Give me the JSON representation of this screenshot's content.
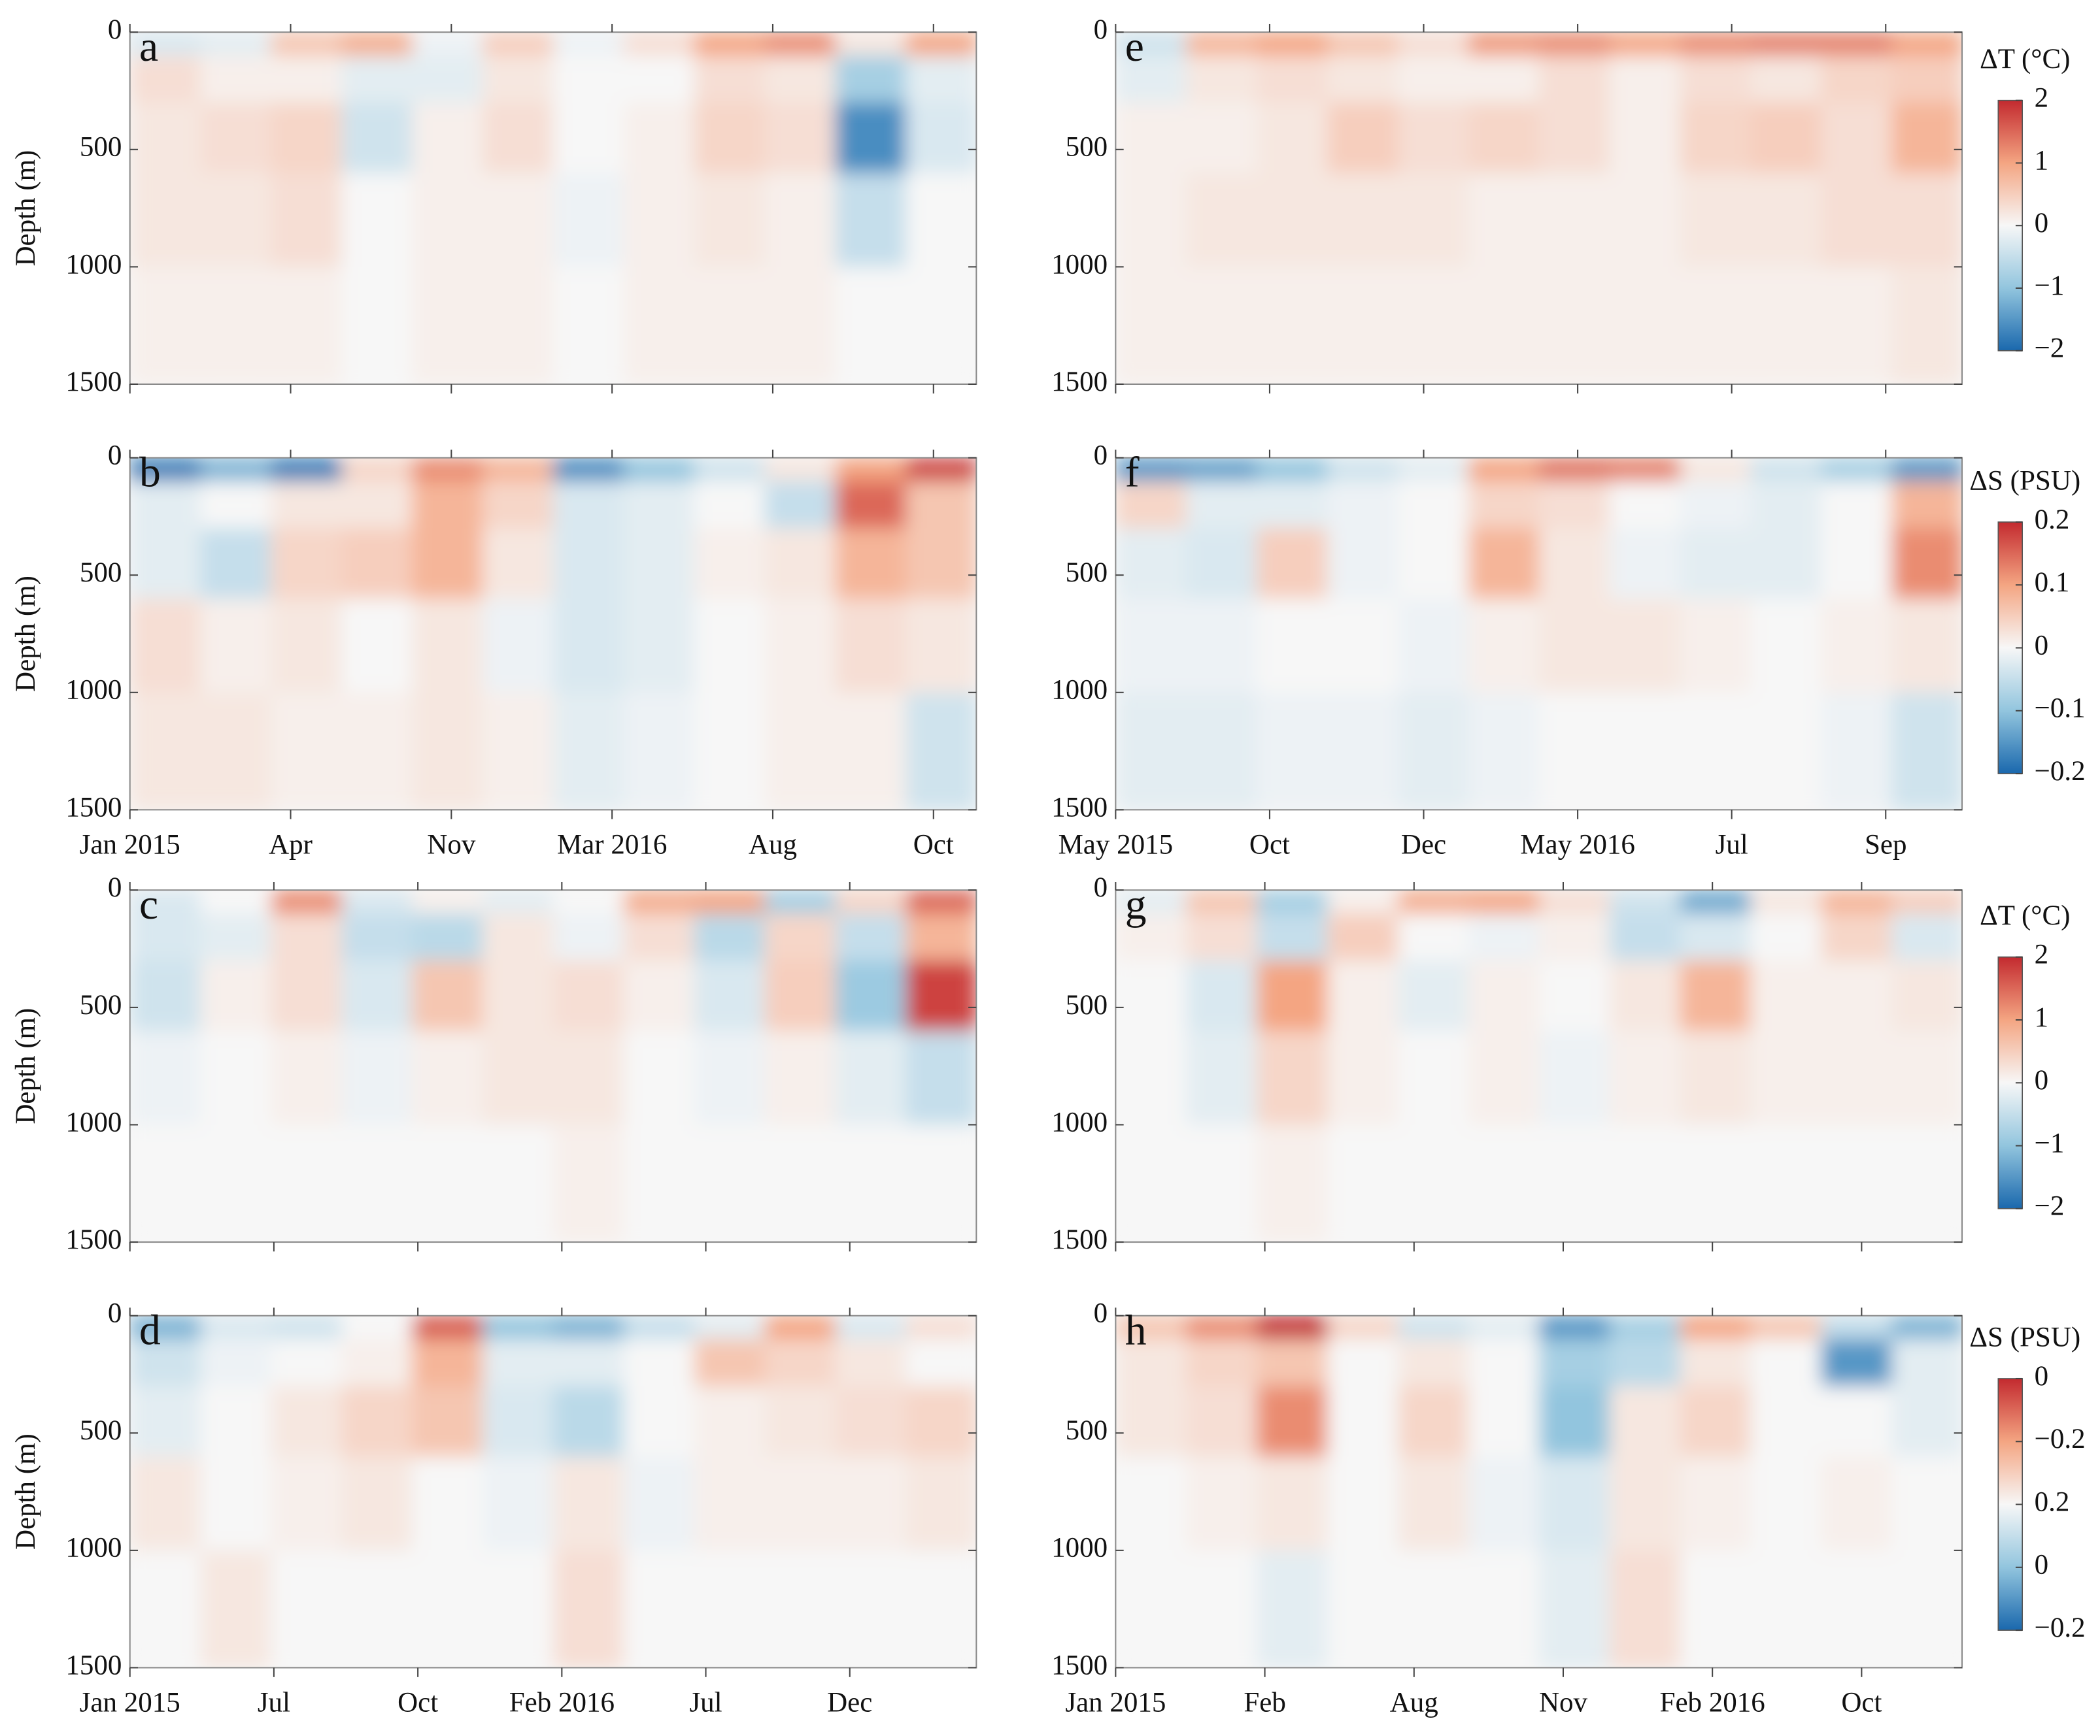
{
  "chart_data": [
    {
      "type": "heatmap",
      "label": "a",
      "ylabel": "Depth (m)",
      "ylim": [
        0,
        1500
      ],
      "yticks": [
        0,
        500,
        1000,
        1500
      ],
      "ybins": [
        0,
        100,
        300,
        600,
        1000,
        1500
      ],
      "z": [
        [
          -0.3,
          -0.2,
          0.6,
          0.9,
          -0.1,
          0.5,
          -0.1,
          0.3,
          1.0,
          1.2,
          0.2,
          1.0
        ],
        [
          0.3,
          0.1,
          0.1,
          -0.2,
          -0.2,
          0.2,
          0.0,
          0.0,
          0.3,
          0.2,
          -0.8,
          -0.2
        ],
        [
          0.2,
          0.3,
          0.4,
          -0.4,
          0.1,
          0.3,
          0.0,
          0.1,
          0.4,
          0.3,
          -1.6,
          -0.3
        ],
        [
          0.2,
          0.2,
          0.3,
          0.0,
          0.1,
          0.1,
          -0.1,
          0.1,
          0.2,
          0.1,
          -0.5,
          0.0
        ],
        [
          0.1,
          0.1,
          0.1,
          0.0,
          0.1,
          0.1,
          0.0,
          0.1,
          0.1,
          0.1,
          0.0,
          0.0
        ]
      ]
    },
    {
      "type": "heatmap",
      "label": "b",
      "ylabel": "Depth (m)",
      "ylim": [
        0,
        1500
      ],
      "yticks": [
        0,
        500,
        1000,
        1500
      ],
      "ybins": [
        0,
        100,
        300,
        600,
        1000,
        1500
      ],
      "xticks": [
        "Jan 2015",
        "Apr",
        "Nov",
        "Mar 2016",
        "Aug",
        "Oct"
      ],
      "z": [
        [
          -0.18,
          -0.12,
          -0.18,
          0.04,
          0.12,
          0.08,
          -0.16,
          -0.1,
          -0.04,
          0.02,
          0.1,
          0.18
        ],
        [
          -0.02,
          0.0,
          0.02,
          0.02,
          0.08,
          0.04,
          -0.03,
          -0.02,
          0.0,
          -0.05,
          0.15,
          0.06
        ],
        [
          -0.02,
          -0.05,
          0.04,
          0.05,
          0.08,
          0.02,
          -0.03,
          -0.02,
          0.01,
          0.02,
          0.08,
          0.06
        ],
        [
          0.03,
          0.01,
          0.02,
          0.0,
          0.02,
          -0.01,
          -0.03,
          -0.02,
          0.0,
          0.01,
          0.03,
          0.02
        ],
        [
          0.02,
          0.02,
          0.01,
          0.01,
          0.02,
          0.01,
          -0.02,
          -0.01,
          0.0,
          0.01,
          0.01,
          -0.04
        ]
      ]
    },
    {
      "type": "heatmap",
      "label": "c",
      "ylabel": "Depth (m)",
      "ylim": [
        0,
        1500
      ],
      "yticks": [
        0,
        500,
        1000,
        1500
      ],
      "ybins": [
        0,
        100,
        300,
        600,
        1000,
        1500
      ],
      "z": [
        [
          -0.3,
          0.0,
          1.2,
          -0.3,
          0.1,
          -0.2,
          0.0,
          0.9,
          1.0,
          -0.8,
          0.4,
          1.5
        ],
        [
          -0.3,
          -0.2,
          0.3,
          -0.5,
          -0.6,
          0.2,
          -0.1,
          0.3,
          -0.6,
          0.4,
          -0.5,
          0.8
        ],
        [
          -0.4,
          0.1,
          0.3,
          -0.3,
          0.6,
          0.2,
          0.3,
          0.1,
          -0.3,
          0.5,
          -0.9,
          1.8
        ],
        [
          -0.1,
          0.0,
          0.1,
          -0.1,
          0.1,
          0.2,
          0.2,
          0.0,
          -0.1,
          0.1,
          -0.2,
          -0.5
        ],
        [
          0.0,
          0.0,
          0.0,
          0.0,
          0.0,
          0.0,
          0.1,
          0.0,
          0.0,
          0.0,
          0.0,
          0.0
        ]
      ]
    },
    {
      "type": "heatmap",
      "label": "d",
      "ylabel": "Depth (m)",
      "ylim": [
        0,
        1500
      ],
      "yticks": [
        0,
        500,
        1000,
        1500
      ],
      "ybins": [
        0,
        100,
        300,
        600,
        1000,
        1500
      ],
      "xticks": [
        "Jan 2015",
        "Jul",
        "Oct",
        "Feb 2016",
        "Jul",
        "Dec"
      ],
      "z": [
        [
          -0.12,
          -0.03,
          -0.04,
          0.0,
          0.16,
          -0.1,
          -0.12,
          -0.05,
          -0.02,
          0.1,
          -0.03,
          0.03
        ],
        [
          -0.04,
          -0.01,
          0.0,
          0.01,
          0.08,
          -0.02,
          -0.02,
          0.0,
          0.06,
          0.04,
          0.02,
          0.0
        ],
        [
          -0.02,
          0.0,
          0.02,
          0.04,
          0.06,
          -0.03,
          -0.06,
          0.0,
          0.01,
          0.02,
          0.03,
          0.04
        ],
        [
          0.02,
          0.0,
          0.01,
          0.02,
          0.0,
          -0.01,
          0.02,
          -0.01,
          0.01,
          0.01,
          0.01,
          0.02
        ],
        [
          0.0,
          0.02,
          0.0,
          0.0,
          0.0,
          0.0,
          0.03,
          0.0,
          0.0,
          0.0,
          0.0,
          0.0
        ]
      ]
    },
    {
      "type": "heatmap",
      "label": "e",
      "ylim": [
        0,
        1500
      ],
      "yticks": [
        0,
        500,
        1000,
        1500
      ],
      "ybins": [
        0,
        100,
        300,
        600,
        1000,
        1500
      ],
      "colorbar": {
        "title": "ΔT (°C)",
        "clim": [
          -2,
          2
        ],
        "cticks": [
          2,
          1,
          0,
          {
            "value": -1,
            "label": "−1"
          },
          {
            "value": -2,
            "label": "−2"
          }
        ]
      },
      "z": [
        [
          -0.4,
          0.8,
          1.0,
          0.6,
          0.3,
          1.1,
          1.2,
          1.0,
          1.2,
          1.3,
          1.3,
          1.0
        ],
        [
          -0.2,
          0.2,
          0.3,
          0.2,
          0.1,
          0.1,
          0.3,
          0.1,
          0.3,
          0.2,
          0.4,
          0.5
        ],
        [
          0.1,
          0.1,
          0.2,
          0.5,
          0.3,
          0.4,
          0.3,
          0.1,
          0.4,
          0.5,
          0.3,
          0.8
        ],
        [
          0.1,
          0.2,
          0.2,
          0.2,
          0.2,
          0.1,
          0.1,
          0.1,
          0.2,
          0.2,
          0.3,
          0.3
        ],
        [
          0.1,
          0.1,
          0.1,
          0.1,
          0.1,
          0.1,
          0.1,
          0.1,
          0.1,
          0.1,
          0.1,
          0.2
        ]
      ]
    },
    {
      "type": "heatmap",
      "label": "f",
      "ylim": [
        0,
        1500
      ],
      "yticks": [
        0,
        500,
        1000,
        1500
      ],
      "ybins": [
        0,
        100,
        300,
        600,
        1000,
        1500
      ],
      "xticks": [
        "May 2015",
        "Oct",
        "Dec",
        "May 2016",
        "Jul",
        "Sep"
      ],
      "colorbar": {
        "title": "ΔS (PSU)",
        "clim": [
          -0.2,
          0.2
        ],
        "cticks": [
          0.2,
          0.1,
          0,
          {
            "value": -0.1,
            "label": "−0.1"
          },
          {
            "value": -0.2,
            "label": "−0.2"
          }
        ]
      },
      "z": [
        [
          -0.15,
          -0.14,
          -0.1,
          -0.04,
          -0.02,
          0.1,
          0.14,
          0.13,
          0.02,
          -0.04,
          -0.08,
          -0.15
        ],
        [
          0.04,
          -0.02,
          -0.02,
          -0.01,
          0.0,
          0.04,
          0.03,
          0.0,
          -0.01,
          -0.02,
          0.0,
          0.08
        ],
        [
          -0.02,
          -0.03,
          0.05,
          -0.01,
          0.0,
          0.08,
          0.02,
          -0.01,
          -0.02,
          -0.02,
          0.0,
          0.12
        ],
        [
          -0.01,
          -0.01,
          0.0,
          0.0,
          -0.01,
          0.01,
          0.02,
          0.02,
          0.01,
          0.0,
          0.01,
          0.02
        ],
        [
          -0.02,
          -0.02,
          -0.01,
          -0.01,
          -0.02,
          -0.01,
          0.0,
          0.0,
          0.0,
          0.0,
          -0.01,
          -0.04
        ]
      ]
    },
    {
      "type": "heatmap",
      "label": "g",
      "ylim": [
        0,
        1500
      ],
      "yticks": [
        0,
        500,
        1000,
        1500
      ],
      "ybins": [
        0,
        100,
        300,
        600,
        1000,
        1500
      ],
      "colorbar": {
        "title": "ΔT (°C)",
        "clim": [
          -2,
          2
        ],
        "cticks": [
          2,
          1,
          0,
          {
            "value": -1,
            "label": "−1"
          },
          {
            "value": -2,
            "label": "−2"
          }
        ]
      },
      "z": [
        [
          -0.2,
          0.6,
          -0.8,
          0.1,
          0.9,
          1.0,
          0.3,
          -0.4,
          -1.3,
          0.2,
          0.8,
          0.5
        ],
        [
          0.1,
          0.3,
          -0.5,
          0.5,
          0.0,
          -0.1,
          0.1,
          -0.5,
          -0.3,
          0.0,
          0.4,
          -0.3
        ],
        [
          0.0,
          -0.3,
          1.0,
          0.1,
          -0.2,
          0.1,
          0.0,
          0.2,
          0.8,
          0.1,
          0.1,
          0.2
        ],
        [
          0.0,
          -0.2,
          0.4,
          0.1,
          0.0,
          0.1,
          -0.1,
          0.1,
          0.2,
          0.1,
          0.1,
          0.1
        ],
        [
          0.0,
          0.0,
          0.1,
          0.0,
          0.0,
          0.0,
          0.0,
          0.0,
          0.0,
          0.0,
          0.0,
          0.0
        ]
      ]
    },
    {
      "type": "heatmap",
      "label": "h",
      "ylim": [
        0,
        1500
      ],
      "yticks": [
        0,
        500,
        1000,
        1500
      ],
      "ybins": [
        0,
        100,
        300,
        600,
        1000,
        1500
      ],
      "xticks": [
        "Jan 2015",
        "Feb",
        "Aug",
        "Nov",
        "Feb 2016",
        "Oct"
      ],
      "colorbar": {
        "title": "ΔS (PSU)",
        "clim": [
          -0.2,
          0.2
        ],
        "clabels": [
          "0",
          "−0.2",
          "0.2",
          "0",
          "−0.2"
        ]
      },
      "z": [
        [
          0.06,
          0.12,
          0.2,
          0.04,
          -0.04,
          -0.02,
          -0.15,
          -0.08,
          0.1,
          0.06,
          -0.05,
          -0.12
        ],
        [
          0.02,
          0.04,
          0.06,
          0.0,
          0.02,
          0.0,
          -0.08,
          -0.06,
          0.02,
          0.0,
          -0.15,
          -0.02
        ],
        [
          0.02,
          0.03,
          0.12,
          0.0,
          0.04,
          0.0,
          -0.1,
          0.02,
          0.04,
          0.0,
          0.0,
          -0.02
        ],
        [
          0.0,
          0.01,
          0.02,
          0.0,
          0.02,
          -0.01,
          -0.03,
          0.02,
          0.01,
          0.0,
          0.01,
          0.0
        ],
        [
          0.0,
          0.0,
          -0.02,
          0.0,
          0.0,
          0.0,
          -0.02,
          0.03,
          0.0,
          0.0,
          0.0,
          0.0
        ]
      ]
    }
  ]
}
